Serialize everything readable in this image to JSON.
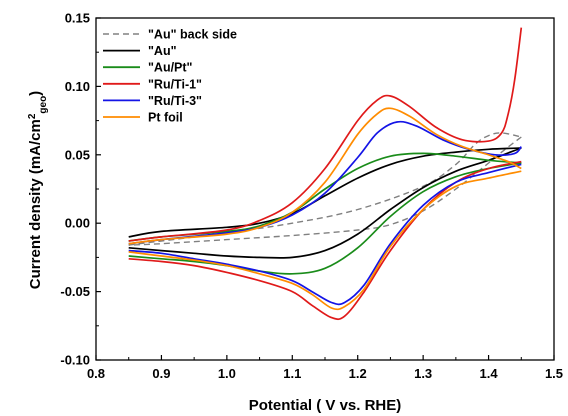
{
  "chart_data": {
    "type": "line",
    "title": "",
    "xlabel": "Potential ( V vs. RHE)",
    "ylabel_main": "Current density (mA/cm",
    "ylabel_sup": "2",
    "ylabel_sub": "geo",
    "ylabel_close": ")",
    "xlim": [
      0.8,
      1.5
    ],
    "ylim": [
      -0.1,
      0.15
    ],
    "x_ticks": [
      "0.8",
      "0.9",
      "1.0",
      "1.1",
      "1.2",
      "1.3",
      "1.4",
      "1.5"
    ],
    "x_tick_values": [
      0.8,
      0.9,
      1.0,
      1.1,
      1.2,
      1.3,
      1.4,
      1.5
    ],
    "y_ticks": [
      "-0.10",
      "-0.05",
      "0.00",
      "0.05",
      "0.10",
      "0.15"
    ],
    "y_tick_values": [
      -0.1,
      -0.05,
      0.0,
      0.05,
      0.1,
      0.15
    ],
    "legend_position": "top-left",
    "series": [
      {
        "name": "\"Au\" back side",
        "color": "#808080",
        "dashed": true,
        "anodic": [
          [
            0.85,
            -0.016
          ],
          [
            0.9,
            -0.013
          ],
          [
            1.0,
            -0.007
          ],
          [
            1.1,
            0.0
          ],
          [
            1.2,
            0.01
          ],
          [
            1.3,
            0.027
          ],
          [
            1.35,
            0.043
          ],
          [
            1.38,
            0.058
          ],
          [
            1.4,
            0.064
          ],
          [
            1.42,
            0.066
          ],
          [
            1.45,
            0.063
          ]
        ],
        "cathodic": [
          [
            1.45,
            0.063
          ],
          [
            1.42,
            0.052
          ],
          [
            1.4,
            0.044
          ],
          [
            1.35,
            0.025
          ],
          [
            1.3,
            0.009
          ],
          [
            1.25,
            -0.001
          ],
          [
            1.2,
            -0.005
          ],
          [
            1.1,
            -0.009
          ],
          [
            1.0,
            -0.012
          ],
          [
            0.9,
            -0.015
          ],
          [
            0.85,
            -0.016
          ]
        ]
      },
      {
        "name": "\"Au\"",
        "color": "#000000",
        "dashed": false,
        "anodic": [
          [
            0.85,
            -0.01
          ],
          [
            0.9,
            -0.006
          ],
          [
            1.0,
            -0.003
          ],
          [
            1.05,
            0.0
          ],
          [
            1.1,
            0.007
          ],
          [
            1.15,
            0.02
          ],
          [
            1.2,
            0.033
          ],
          [
            1.25,
            0.043
          ],
          [
            1.3,
            0.049
          ],
          [
            1.35,
            0.052
          ],
          [
            1.4,
            0.054
          ],
          [
            1.45,
            0.055
          ]
        ],
        "cathodic": [
          [
            1.45,
            0.055
          ],
          [
            1.4,
            0.046
          ],
          [
            1.35,
            0.038
          ],
          [
            1.3,
            0.026
          ],
          [
            1.25,
            0.01
          ],
          [
            1.2,
            -0.008
          ],
          [
            1.15,
            -0.02
          ],
          [
            1.1,
            -0.025
          ],
          [
            1.05,
            -0.025
          ],
          [
            1.0,
            -0.024
          ],
          [
            0.95,
            -0.022
          ],
          [
            0.9,
            -0.02
          ],
          [
            0.85,
            -0.018
          ]
        ]
      },
      {
        "name": "\"Au/Pt\"",
        "color": "#1a8c1a",
        "dashed": false,
        "anodic": [
          [
            0.85,
            -0.013
          ],
          [
            0.9,
            -0.01
          ],
          [
            1.0,
            -0.006
          ],
          [
            1.05,
            -0.002
          ],
          [
            1.1,
            0.008
          ],
          [
            1.15,
            0.025
          ],
          [
            1.2,
            0.04
          ],
          [
            1.25,
            0.049
          ],
          [
            1.3,
            0.051
          ],
          [
            1.35,
            0.049
          ],
          [
            1.4,
            0.046
          ],
          [
            1.45,
            0.044
          ]
        ],
        "cathodic": [
          [
            1.45,
            0.044
          ],
          [
            1.4,
            0.04
          ],
          [
            1.35,
            0.034
          ],
          [
            1.3,
            0.023
          ],
          [
            1.25,
            0.005
          ],
          [
            1.2,
            -0.018
          ],
          [
            1.15,
            -0.033
          ],
          [
            1.1,
            -0.037
          ],
          [
            1.05,
            -0.035
          ],
          [
            1.0,
            -0.031
          ],
          [
            0.95,
            -0.028
          ],
          [
            0.9,
            -0.026
          ],
          [
            0.85,
            -0.024
          ]
        ]
      },
      {
        "name": "\"Ru/Ti-1\"",
        "color": "#e01a1a",
        "dashed": false,
        "anodic": [
          [
            0.85,
            -0.013
          ],
          [
            0.9,
            -0.01
          ],
          [
            1.0,
            -0.005
          ],
          [
            1.05,
            0.002
          ],
          [
            1.1,
            0.015
          ],
          [
            1.15,
            0.04
          ],
          [
            1.2,
            0.075
          ],
          [
            1.23,
            0.09
          ],
          [
            1.25,
            0.093
          ],
          [
            1.28,
            0.085
          ],
          [
            1.32,
            0.07
          ],
          [
            1.36,
            0.061
          ],
          [
            1.4,
            0.06
          ],
          [
            1.42,
            0.066
          ],
          [
            1.43,
            0.08
          ],
          [
            1.44,
            0.105
          ],
          [
            1.45,
            0.143
          ]
        ],
        "cathodic": [
          [
            1.45,
            0.045
          ],
          [
            1.4,
            0.04
          ],
          [
            1.35,
            0.03
          ],
          [
            1.3,
            0.01
          ],
          [
            1.25,
            -0.02
          ],
          [
            1.21,
            -0.05
          ],
          [
            1.18,
            -0.068
          ],
          [
            1.16,
            -0.069
          ],
          [
            1.13,
            -0.06
          ],
          [
            1.1,
            -0.05
          ],
          [
            1.05,
            -0.042
          ],
          [
            1.0,
            -0.036
          ],
          [
            0.95,
            -0.031
          ],
          [
            0.9,
            -0.028
          ],
          [
            0.85,
            -0.026
          ]
        ]
      },
      {
        "name": "\"Ru/Ti-3\"",
        "color": "#1414e6",
        "dashed": false,
        "anodic": [
          [
            0.85,
            -0.015
          ],
          [
            0.9,
            -0.012
          ],
          [
            1.0,
            -0.007
          ],
          [
            1.05,
            -0.003
          ],
          [
            1.1,
            0.006
          ],
          [
            1.15,
            0.022
          ],
          [
            1.2,
            0.048
          ],
          [
            1.23,
            0.066
          ],
          [
            1.26,
            0.074
          ],
          [
            1.29,
            0.071
          ],
          [
            1.33,
            0.061
          ],
          [
            1.37,
            0.054
          ],
          [
            1.41,
            0.05
          ],
          [
            1.44,
            0.051
          ],
          [
            1.45,
            0.056
          ]
        ],
        "cathodic": [
          [
            1.45,
            0.043
          ],
          [
            1.4,
            0.037
          ],
          [
            1.35,
            0.03
          ],
          [
            1.3,
            0.013
          ],
          [
            1.25,
            -0.015
          ],
          [
            1.21,
            -0.045
          ],
          [
            1.18,
            -0.058
          ],
          [
            1.16,
            -0.058
          ],
          [
            1.13,
            -0.05
          ],
          [
            1.1,
            -0.042
          ],
          [
            1.05,
            -0.035
          ],
          [
            1.0,
            -0.03
          ],
          [
            0.95,
            -0.026
          ],
          [
            0.9,
            -0.022
          ],
          [
            0.85,
            -0.02
          ]
        ]
      },
      {
        "name": "Pt foil",
        "color": "#ff8c00",
        "dashed": false,
        "anodic": [
          [
            0.85,
            -0.015
          ],
          [
            0.9,
            -0.012
          ],
          [
            1.0,
            -0.008
          ],
          [
            1.05,
            -0.003
          ],
          [
            1.1,
            0.008
          ],
          [
            1.15,
            0.03
          ],
          [
            1.2,
            0.065
          ],
          [
            1.23,
            0.08
          ],
          [
            1.25,
            0.084
          ],
          [
            1.28,
            0.078
          ],
          [
            1.32,
            0.065
          ],
          [
            1.36,
            0.056
          ],
          [
            1.4,
            0.05
          ],
          [
            1.43,
            0.045
          ],
          [
            1.45,
            0.04
          ]
        ],
        "cathodic": [
          [
            1.45,
            0.038
          ],
          [
            1.4,
            0.033
          ],
          [
            1.35,
            0.027
          ],
          [
            1.3,
            0.01
          ],
          [
            1.25,
            -0.017
          ],
          [
            1.21,
            -0.048
          ],
          [
            1.18,
            -0.061
          ],
          [
            1.16,
            -0.062
          ],
          [
            1.13,
            -0.052
          ],
          [
            1.1,
            -0.044
          ],
          [
            1.05,
            -0.037
          ],
          [
            1.0,
            -0.031
          ],
          [
            0.95,
            -0.027
          ],
          [
            0.9,
            -0.024
          ],
          [
            0.85,
            -0.021
          ]
        ]
      }
    ]
  }
}
